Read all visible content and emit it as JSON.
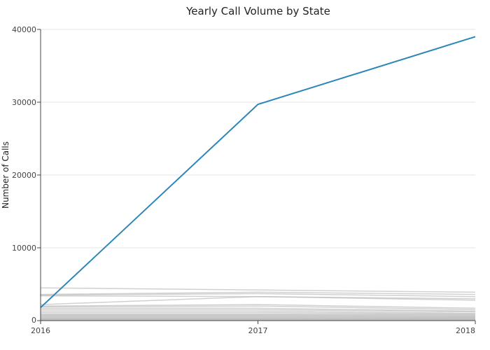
{
  "chart_data": {
    "type": "line",
    "title": "Yearly Call Volume by State",
    "xlabel": "",
    "ylabel": "Number of Calls",
    "x": [
      2016,
      2017,
      2018
    ],
    "xticks": [
      "2016",
      "2017",
      "2018"
    ],
    "yticks": [
      "0",
      "10000",
      "20000",
      "30000",
      "40000"
    ],
    "xlim": [
      2016,
      2018
    ],
    "ylim": [
      0,
      40000
    ],
    "grid": true,
    "legend": "none",
    "highlight_color": "#2e86b8",
    "background_color": "#bdbdbd",
    "series": [
      {
        "values": [
          1800,
          29700,
          39000
        ],
        "highlight": true
      },
      {
        "values": [
          4500,
          4200,
          3900
        ],
        "highlight": false
      },
      {
        "values": [
          3600,
          3900,
          3600
        ],
        "highlight": false
      },
      {
        "values": [
          3500,
          3700,
          3300
        ],
        "highlight": false
      },
      {
        "values": [
          2200,
          3300,
          3000
        ],
        "highlight": false
      },
      {
        "values": [
          3400,
          3300,
          2800
        ],
        "highlight": false
      },
      {
        "values": [
          2000,
          2200,
          1700
        ],
        "highlight": false
      },
      {
        "values": [
          1900,
          2000,
          1500
        ],
        "highlight": false
      },
      {
        "values": [
          1700,
          1700,
          1300
        ],
        "highlight": false
      },
      {
        "values": [
          1500,
          1500,
          1200
        ],
        "highlight": false
      },
      {
        "values": [
          1300,
          1300,
          1000
        ],
        "highlight": false
      },
      {
        "values": [
          1100,
          1100,
          900
        ],
        "highlight": false
      },
      {
        "values": [
          900,
          900,
          800
        ],
        "highlight": false
      },
      {
        "values": [
          800,
          800,
          700
        ],
        "highlight": false
      },
      {
        "values": [
          700,
          700,
          600
        ],
        "highlight": false
      },
      {
        "values": [
          600,
          600,
          500
        ],
        "highlight": false
      },
      {
        "values": [
          500,
          500,
          450
        ],
        "highlight": false
      },
      {
        "values": [
          400,
          400,
          380
        ],
        "highlight": false
      },
      {
        "values": [
          300,
          300,
          300
        ],
        "highlight": false
      },
      {
        "values": [
          250,
          250,
          250
        ],
        "highlight": false
      },
      {
        "values": [
          200,
          200,
          200
        ],
        "highlight": false
      },
      {
        "values": [
          150,
          150,
          150
        ],
        "highlight": false
      },
      {
        "values": [
          100,
          100,
          100
        ],
        "highlight": false
      },
      {
        "values": [
          80,
          80,
          80
        ],
        "highlight": false
      },
      {
        "values": [
          50,
          50,
          50
        ],
        "highlight": false
      }
    ]
  }
}
